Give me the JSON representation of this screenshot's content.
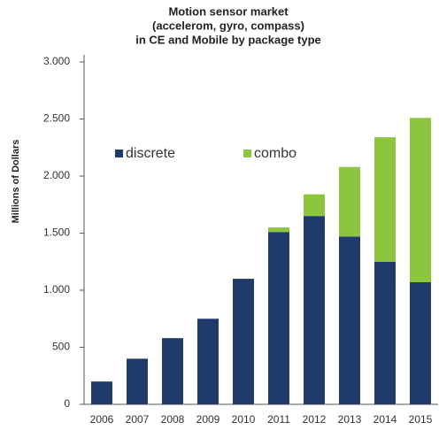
{
  "chart_data": {
    "type": "stacked_bar",
    "title": [
      "Motion sensor market",
      "(accelerom, gyro, compass)",
      "in CE and Mobile by package type"
    ],
    "y_label": "Millions of Dollars",
    "categories": [
      "2006",
      "2007",
      "2008",
      "2009",
      "2010",
      "2011",
      "2012",
      "2013",
      "2014",
      "2015"
    ],
    "series": [
      {
        "name": "discrete",
        "color": "#1f3b6b",
        "values": [
          200,
          400,
          580,
          750,
          1100,
          1510,
          1650,
          1470,
          1250,
          1070
        ]
      },
      {
        "name": "combo",
        "color": "#8cc63f",
        "values": [
          0,
          0,
          0,
          0,
          0,
          40,
          190,
          610,
          1090,
          1440
        ]
      }
    ],
    "ylim": [
      0,
      3000
    ],
    "yticks": [
      0,
      500,
      {
        "value": 1000,
        "label": "1.000"
      },
      {
        "value": 1500,
        "label": "1.500"
      },
      {
        "value": 2000,
        "label": "2.000"
      },
      {
        "value": 2500,
        "label": "2.500"
      },
      {
        "value": 3000,
        "label": "3.000"
      }
    ],
    "grid": false,
    "legend": "top-left"
  }
}
